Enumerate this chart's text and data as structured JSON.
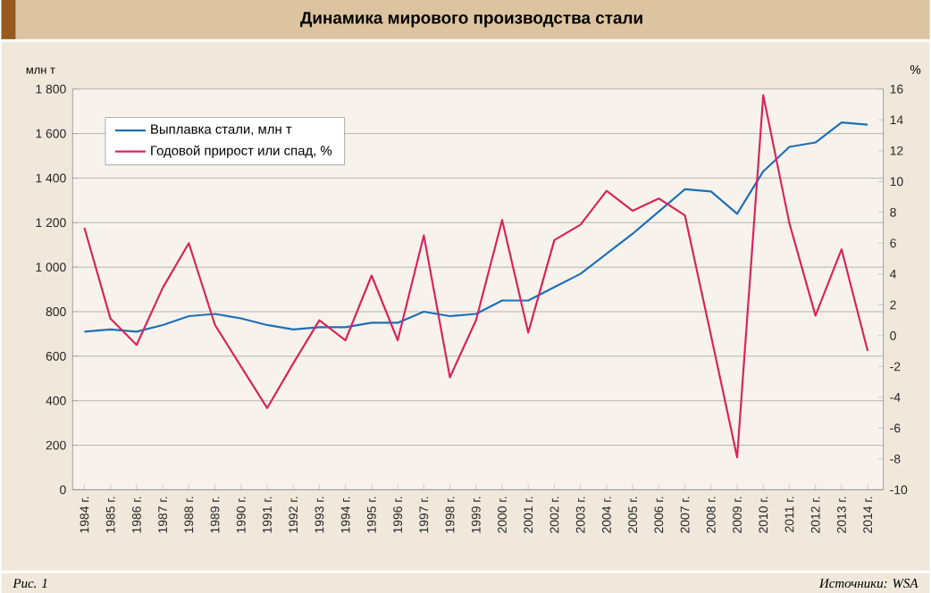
{
  "chart_data": {
    "type": "line",
    "title": "Динамика мирового производства стали",
    "ylabel": "млн т",
    "y2label": "%",
    "annotations": [
      "Рис. 1",
      "Источники: WSA"
    ],
    "categories": [
      "1984 г.",
      "1985 г.",
      "1986 г.",
      "1987 г.",
      "1988 г.",
      "1989 г.",
      "1990 г.",
      "1991 г.",
      "1992 г.",
      "1993 г.",
      "1994 г.",
      "1995 г.",
      "1996 г.",
      "1997 г.",
      "1998 г.",
      "1999 г.",
      "2000 г.",
      "2001 г.",
      "2002 г.",
      "2003 г.",
      "2004 г.",
      "2005 г.",
      "2006 г.",
      "2007 г.",
      "2008 г.",
      "2009 г.",
      "2010 г.",
      "2011 г.",
      "2012 г.",
      "2013 г.",
      "2014 г."
    ],
    "series": [
      {
        "name": "Выплавка стали, млн т",
        "color": "#1f6fb5",
        "values": [
          710,
          720,
          710,
          740,
          780,
          790,
          770,
          740,
          720,
          730,
          730,
          750,
          750,
          800,
          780,
          790,
          850,
          850,
          910,
          970,
          1060,
          1150,
          1250,
          1350,
          1340,
          1240,
          1430,
          1540,
          1560,
          1650,
          1640
        ]
      },
      {
        "name": "Годовой прирост или спад, %",
        "color": "#d9245e",
        "axis": "y2",
        "values": [
          7.0,
          1.1,
          -0.6,
          3.1,
          6.0,
          0.7,
          -2.0,
          -4.7,
          -1.8,
          1.0,
          -0.3,
          3.9,
          -0.3,
          6.5,
          -2.7,
          1.0,
          7.5,
          0.2,
          6.2,
          7.2,
          9.4,
          8.1,
          8.9,
          7.8,
          0.0,
          -7.9,
          15.6,
          7.3,
          1.3,
          5.6,
          -1.0
        ]
      }
    ],
    "ylim": [
      0,
      1800
    ],
    "yticks": [
      0,
      200,
      400,
      600,
      800,
      {
        "value": 1000,
        "label": "1 000"
      },
      {
        "value": 1200,
        "label": "1 200"
      },
      {
        "value": 1400,
        "label": "1 400"
      },
      {
        "value": 1600,
        "label": "1 600"
      },
      {
        "value": 1800,
        "label": "1 800"
      }
    ],
    "y2lim": [
      -10,
      16
    ],
    "y2ticks": [
      -10,
      -8,
      -6,
      -4,
      -2,
      0,
      2,
      4,
      6,
      8,
      10,
      12,
      14,
      16
    ],
    "grid": "y",
    "legend": "top left"
  }
}
